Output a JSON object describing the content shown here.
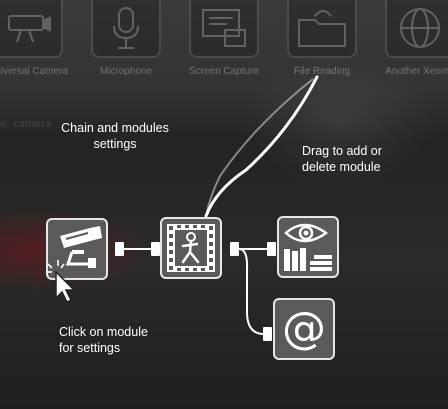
{
  "palette": {
    "items": [
      {
        "label": "Universal Camera",
        "icon": "camera-icon"
      },
      {
        "label": "Microphone",
        "icon": "microphone-icon"
      },
      {
        "label": "Screen Capture",
        "icon": "screen-capture-icon"
      },
      {
        "label": "File Reading",
        "icon": "folder-icon"
      },
      {
        "label": "Another Xeoma",
        "icon": "globe-icon"
      }
    ]
  },
  "background_note": "e. camera",
  "tips": {
    "chain_settings": "Chain and modules\nsettings",
    "drag": "Drag to add or\ndelete module",
    "click": "Click on module\nfor settings"
  },
  "chain": {
    "modules": [
      {
        "name": "camera-module",
        "icon": "camera-icon"
      },
      {
        "name": "motion-detector-module",
        "icon": "motion-detector-icon"
      },
      {
        "name": "preview-archive-module",
        "icon": "preview-archive-icon"
      },
      {
        "name": "email-module",
        "icon": "email-icon",
        "text": "@"
      }
    ]
  },
  "colors": {
    "module_fill": "#5a5a5a",
    "module_border": "#e6e6e6",
    "wire": "#ffffff"
  }
}
